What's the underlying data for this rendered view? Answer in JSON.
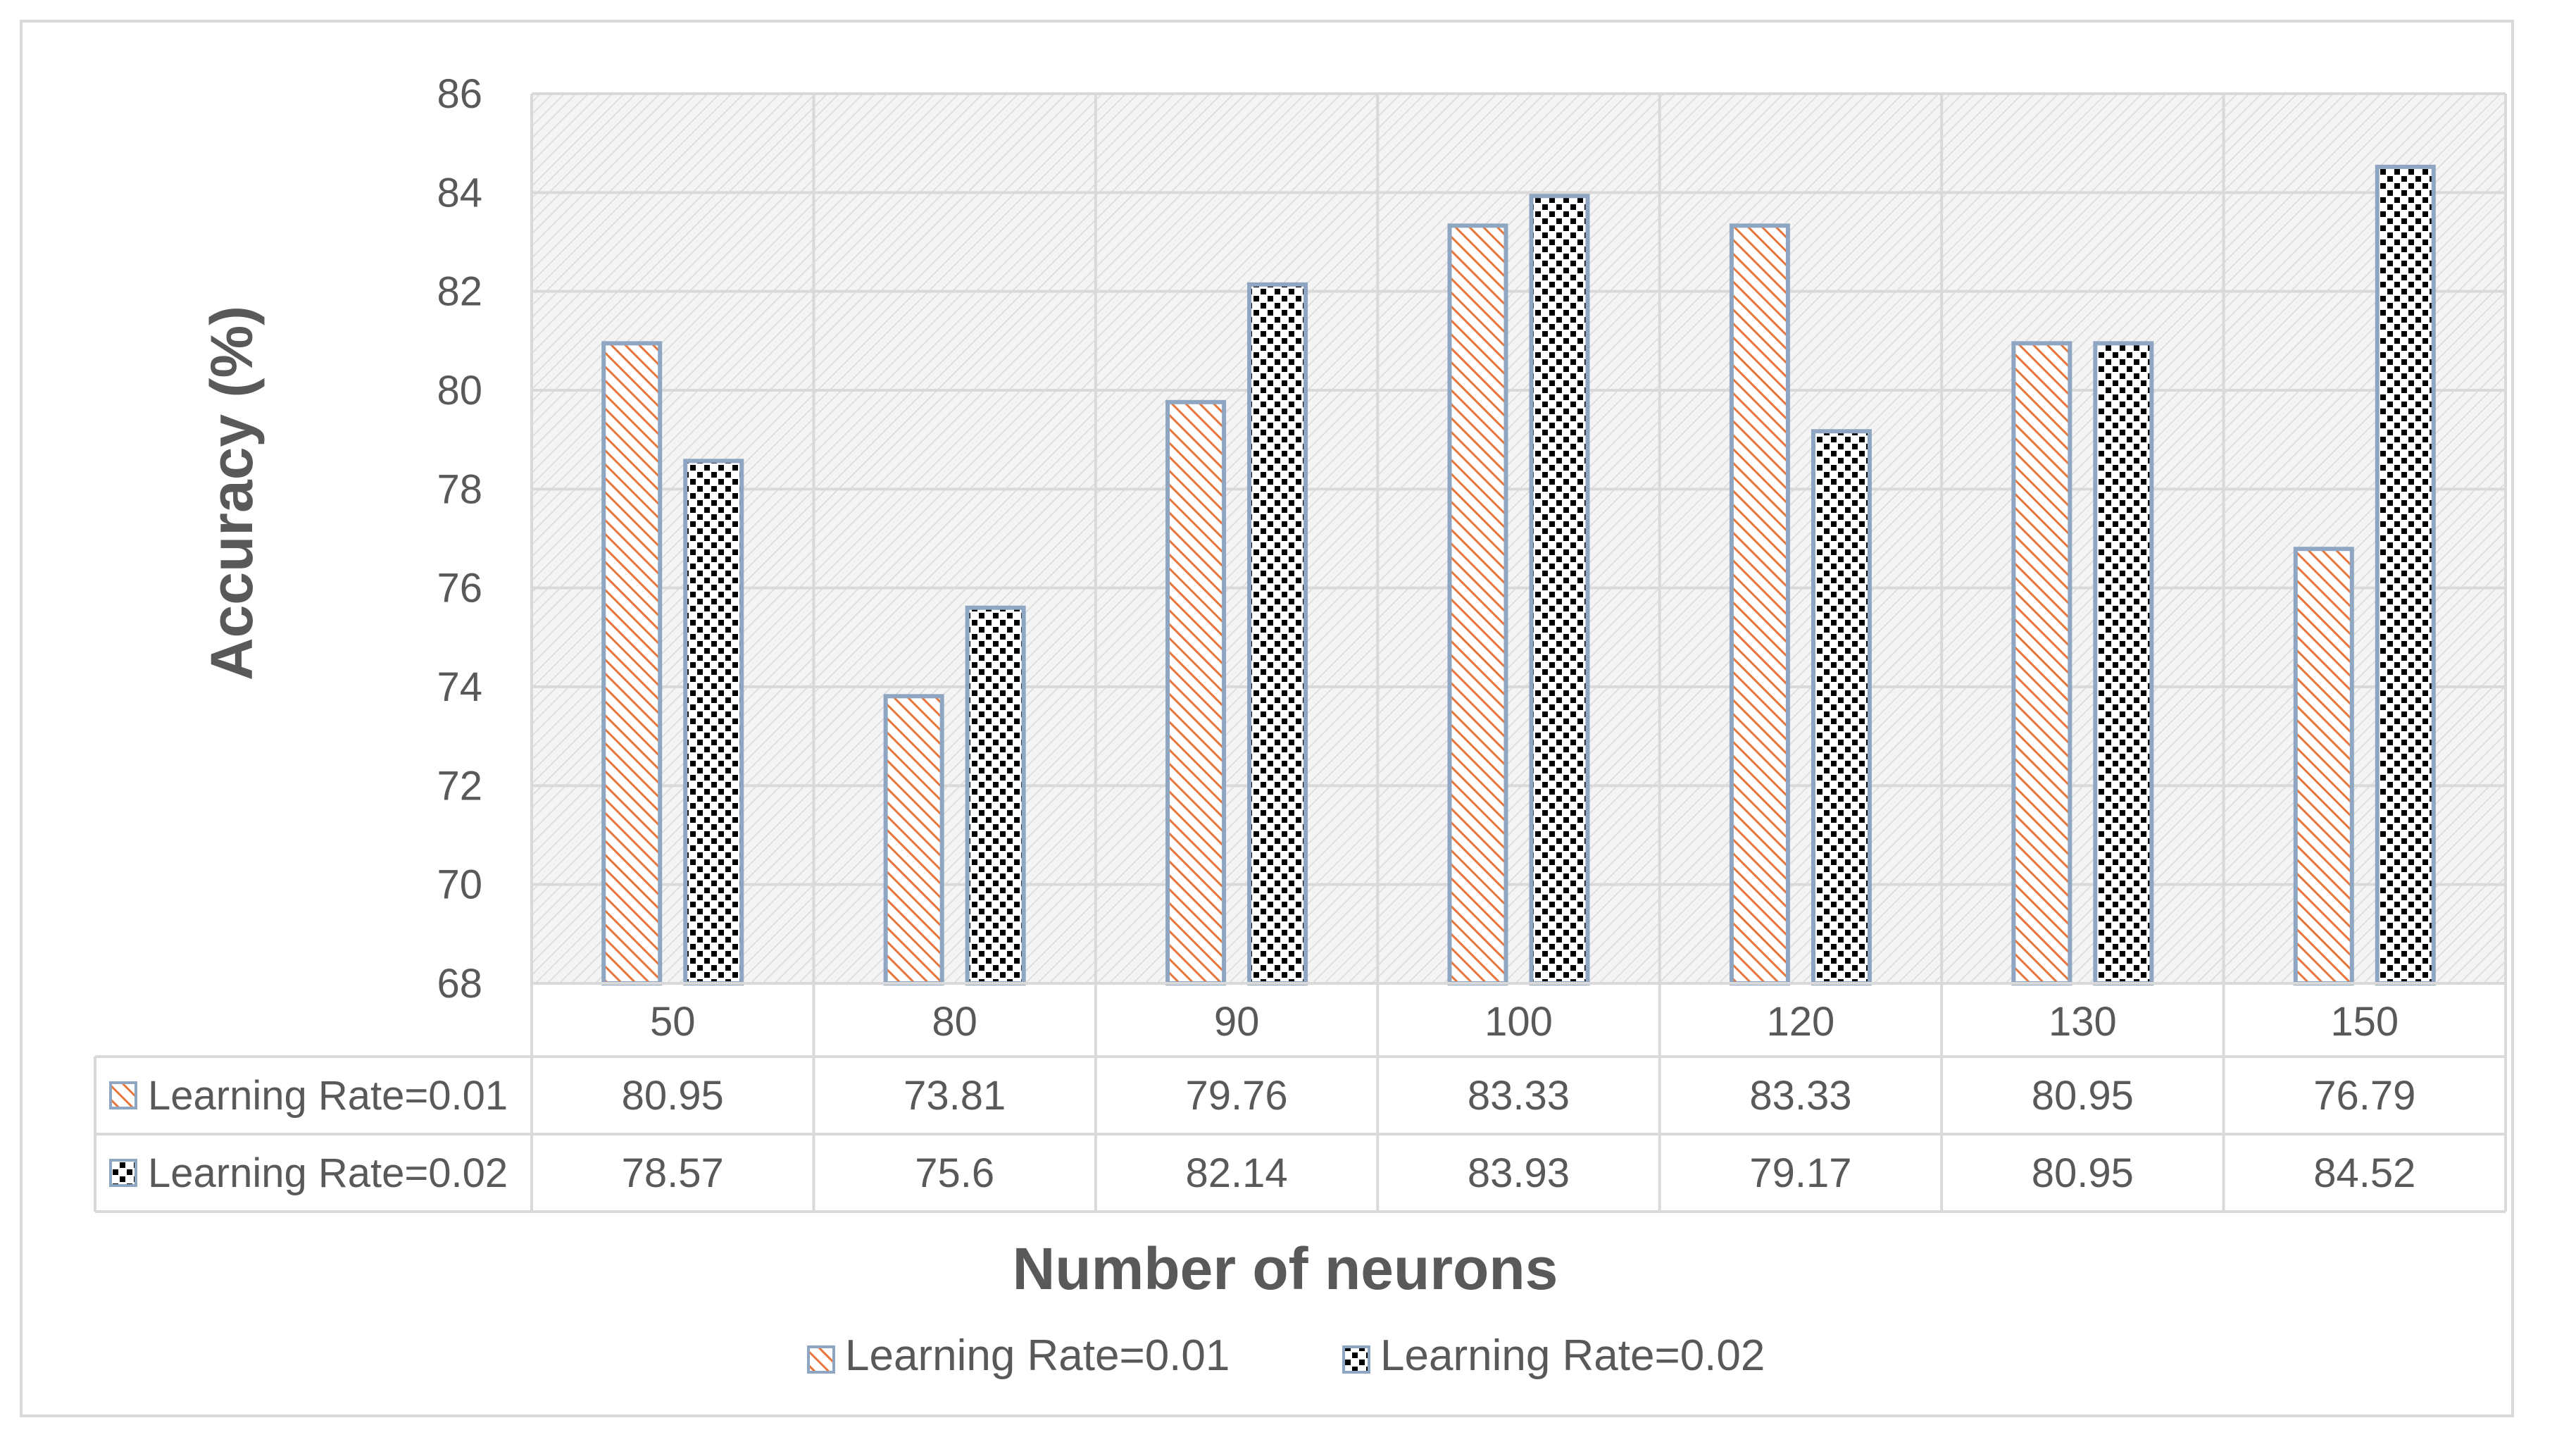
{
  "chart_data": {
    "type": "bar",
    "title": "",
    "xlabel": "Number of neurons",
    "ylabel": "Accuracy (%)",
    "categories": [
      "50",
      "80",
      "90",
      "100",
      "120",
      "130",
      "150"
    ],
    "ylim": [
      68,
      86
    ],
    "yticks": [
      68,
      70,
      72,
      74,
      76,
      78,
      80,
      82,
      84,
      86
    ],
    "grid": true,
    "legend_position": "bottom",
    "data_table": true,
    "series": [
      {
        "name": "Learning Rate=0.01",
        "values": [
          80.95,
          73.81,
          79.76,
          83.33,
          83.33,
          80.95,
          76.79
        ],
        "labels": [
          "80.95",
          "73.81",
          "79.76",
          "83.33",
          "83.33",
          "80.95",
          "76.79"
        ],
        "pattern": "orange-diagonal-stripes",
        "color": "#e8763a",
        "border": "#8ea6c2"
      },
      {
        "name": "Learning Rate=0.02",
        "values": [
          78.57,
          75.6,
          82.14,
          83.93,
          79.17,
          80.95,
          84.52
        ],
        "labels": [
          "78.57",
          "75.6",
          "82.14",
          "83.93",
          "79.17",
          "80.95",
          "84.52"
        ],
        "pattern": "black-checker",
        "color": "#000000",
        "border": "#8ea6c2"
      }
    ]
  }
}
